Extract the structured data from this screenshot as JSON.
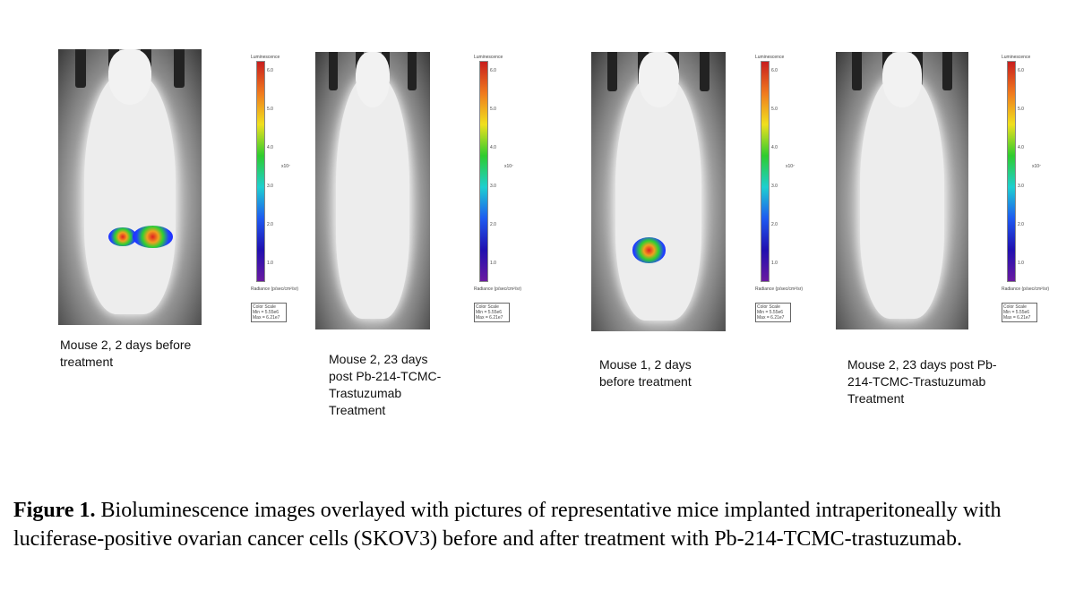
{
  "panels": [
    {
      "caption": "Mouse 2, 2 days before treatment",
      "signal": true
    },
    {
      "caption": "Mouse 2, 23 days post Pb-214-TCMC-Trastuzumab Treatment",
      "signal": false
    },
    {
      "caption": "Mouse 1, 2 days before treatment",
      "signal": true
    },
    {
      "caption": "Mouse 2, 23 days post Pb-214-TCMC-Trastuzumab Treatment",
      "signal": false
    }
  ],
  "color_scale": {
    "title": "Luminescence",
    "ticks": [
      "6.0",
      "5.0",
      "4.0",
      "3.0",
      "2.0",
      "1.0"
    ],
    "exponent": "x10⁷",
    "units": "Radiance (p/sec/cm²/sr)",
    "box_title": "Color Scale",
    "min": "Min = 5.55e6",
    "max": "Max = 6.21e7"
  },
  "figure_caption": {
    "label": "Figure 1.",
    "text": " Bioluminescence images overlayed with pictures of representative mice implanted intraperitoneally with luciferase-positive ovarian cancer cells (SKOV3) before and after treatment with Pb-214-TCMC-trastuzumab."
  }
}
